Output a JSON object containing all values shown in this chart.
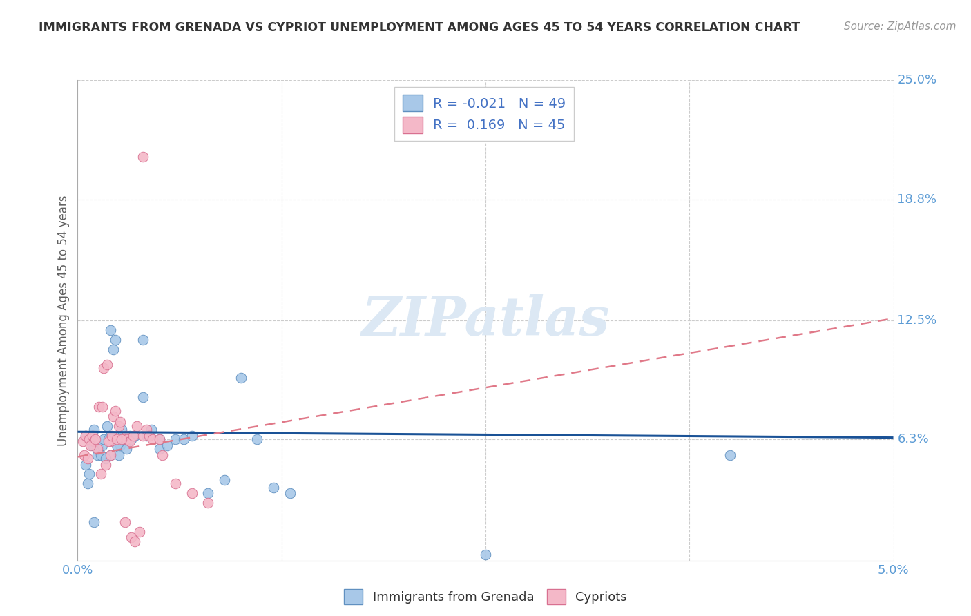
{
  "title": "IMMIGRANTS FROM GRENADA VS CYPRIOT UNEMPLOYMENT AMONG AGES 45 TO 54 YEARS CORRELATION CHART",
  "source": "Source: ZipAtlas.com",
  "ylabel": "Unemployment Among Ages 45 to 54 years",
  "xlim": [
    0.0,
    0.05
  ],
  "ylim": [
    0.0,
    0.25
  ],
  "ytick_vals": [
    0.063,
    0.125,
    0.188,
    0.25
  ],
  "ytick_labels": [
    "6.3%",
    "12.5%",
    "18.8%",
    "25.0%"
  ],
  "xtick_vals": [
    0.0,
    0.0125,
    0.025,
    0.0375,
    0.05
  ],
  "xtick_labels": [
    "0.0%",
    "",
    "",
    "",
    "5.0%"
  ],
  "grenada_scatter_x": [
    0.0005,
    0.0008,
    0.001,
    0.0012,
    0.0013,
    0.0015,
    0.0016,
    0.0018,
    0.002,
    0.002,
    0.0022,
    0.0023,
    0.0025,
    0.0026,
    0.0027,
    0.003,
    0.003,
    0.0032,
    0.0033,
    0.0035,
    0.004,
    0.004,
    0.0042,
    0.0045,
    0.005,
    0.005,
    0.0055,
    0.006,
    0.0065,
    0.007,
    0.008,
    0.009,
    0.01,
    0.011,
    0.012,
    0.013,
    0.0005,
    0.0006,
    0.0007,
    0.0009,
    0.0014,
    0.0017,
    0.0019,
    0.0021,
    0.0024,
    0.0028,
    0.002,
    0.001,
    0.025,
    0.04
  ],
  "grenada_scatter_y": [
    0.065,
    0.062,
    0.068,
    0.055,
    0.058,
    0.06,
    0.063,
    0.07,
    0.065,
    0.055,
    0.11,
    0.115,
    0.055,
    0.06,
    0.068,
    0.063,
    0.058,
    0.065,
    0.063,
    0.065,
    0.085,
    0.115,
    0.065,
    0.068,
    0.058,
    0.063,
    0.06,
    0.063,
    0.063,
    0.065,
    0.035,
    0.042,
    0.095,
    0.063,
    0.038,
    0.035,
    0.05,
    0.04,
    0.045,
    0.06,
    0.055,
    0.053,
    0.063,
    0.063,
    0.06,
    0.063,
    0.12,
    0.02,
    0.003,
    0.055
  ],
  "cypriot_scatter_x": [
    0.0003,
    0.0005,
    0.0007,
    0.0009,
    0.001,
    0.0012,
    0.0013,
    0.0015,
    0.0016,
    0.0018,
    0.002,
    0.002,
    0.0022,
    0.0023,
    0.0025,
    0.0026,
    0.003,
    0.003,
    0.0032,
    0.0034,
    0.0036,
    0.004,
    0.0042,
    0.0044,
    0.0046,
    0.005,
    0.0052,
    0.006,
    0.007,
    0.008,
    0.0004,
    0.0006,
    0.0008,
    0.0011,
    0.0014,
    0.0017,
    0.0019,
    0.0021,
    0.0024,
    0.0027,
    0.0029,
    0.0033,
    0.0035,
    0.0038,
    0.004
  ],
  "cypriot_scatter_y": [
    0.062,
    0.065,
    0.063,
    0.065,
    0.062,
    0.058,
    0.08,
    0.08,
    0.1,
    0.102,
    0.055,
    0.062,
    0.075,
    0.078,
    0.07,
    0.072,
    0.065,
    0.063,
    0.062,
    0.065,
    0.07,
    0.065,
    0.068,
    0.065,
    0.063,
    0.063,
    0.055,
    0.04,
    0.035,
    0.03,
    0.055,
    0.053,
    0.06,
    0.063,
    0.045,
    0.05,
    0.062,
    0.065,
    0.063,
    0.063,
    0.02,
    0.012,
    0.01,
    0.015,
    0.21
  ],
  "grenada_line_x": [
    0.0,
    0.05
  ],
  "grenada_line_y": [
    0.067,
    0.064
  ],
  "cypriot_line_x": [
    0.0,
    0.05
  ],
  "cypriot_line_y": [
    0.054,
    0.126
  ],
  "scatter_size": 110,
  "grenada_color": "#a8c8e8",
  "cypriot_color": "#f4b8c8",
  "grenada_edge": "#6090c0",
  "cypriot_edge": "#d87090",
  "grenada_line_color": "#1a5296",
  "cypriot_line_color": "#e07888",
  "bg_color": "#ffffff",
  "grid_color": "#cccccc",
  "right_label_color": "#5b9bd5",
  "ylabel_color": "#606060",
  "title_color": "#333333",
  "legend_text_color": "#4472c4",
  "watermark_color": "#dce8f4"
}
